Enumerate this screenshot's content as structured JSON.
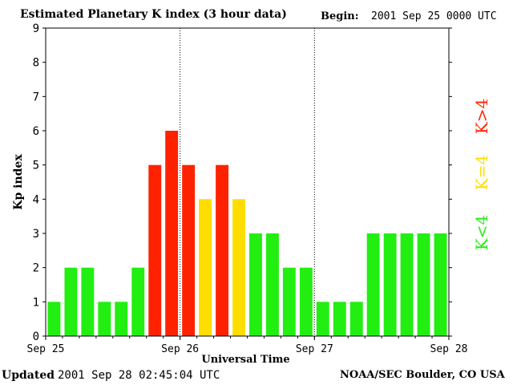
{
  "header": {
    "title": "Estimated Planetary K index (3 hour data)",
    "begin_label": "Begin:",
    "begin_value": "2001 Sep 25 0000 UTC"
  },
  "footer": {
    "updated_label": "Updated",
    "updated_value": "2001 Sep 28 02:45:04 UTC",
    "credit": "NOAA/SEC Boulder, CO USA"
  },
  "colors": {
    "low": "#22ee11",
    "mid": "#ffdd00",
    "high": "#ff2200"
  },
  "legend": [
    {
      "label": "K>4",
      "level": "high"
    },
    {
      "label": "K=4",
      "level": "mid"
    },
    {
      "label": "K<4",
      "level": "low"
    }
  ],
  "chart_data": {
    "type": "bar",
    "xlabel": "Universal Time",
    "ylabel": "Kp index",
    "ylim": [
      0,
      9
    ],
    "yticks": [
      0,
      1,
      2,
      3,
      4,
      5,
      6,
      7,
      8,
      9
    ],
    "day_labels": [
      "Sep 25",
      "Sep 26",
      "Sep 27",
      "Sep 28"
    ],
    "values": [
      1,
      2,
      2,
      1,
      1,
      2,
      5,
      6,
      5,
      4,
      5,
      4,
      3,
      3,
      2,
      2,
      1,
      1,
      1,
      3,
      3,
      3,
      3,
      3
    ]
  }
}
